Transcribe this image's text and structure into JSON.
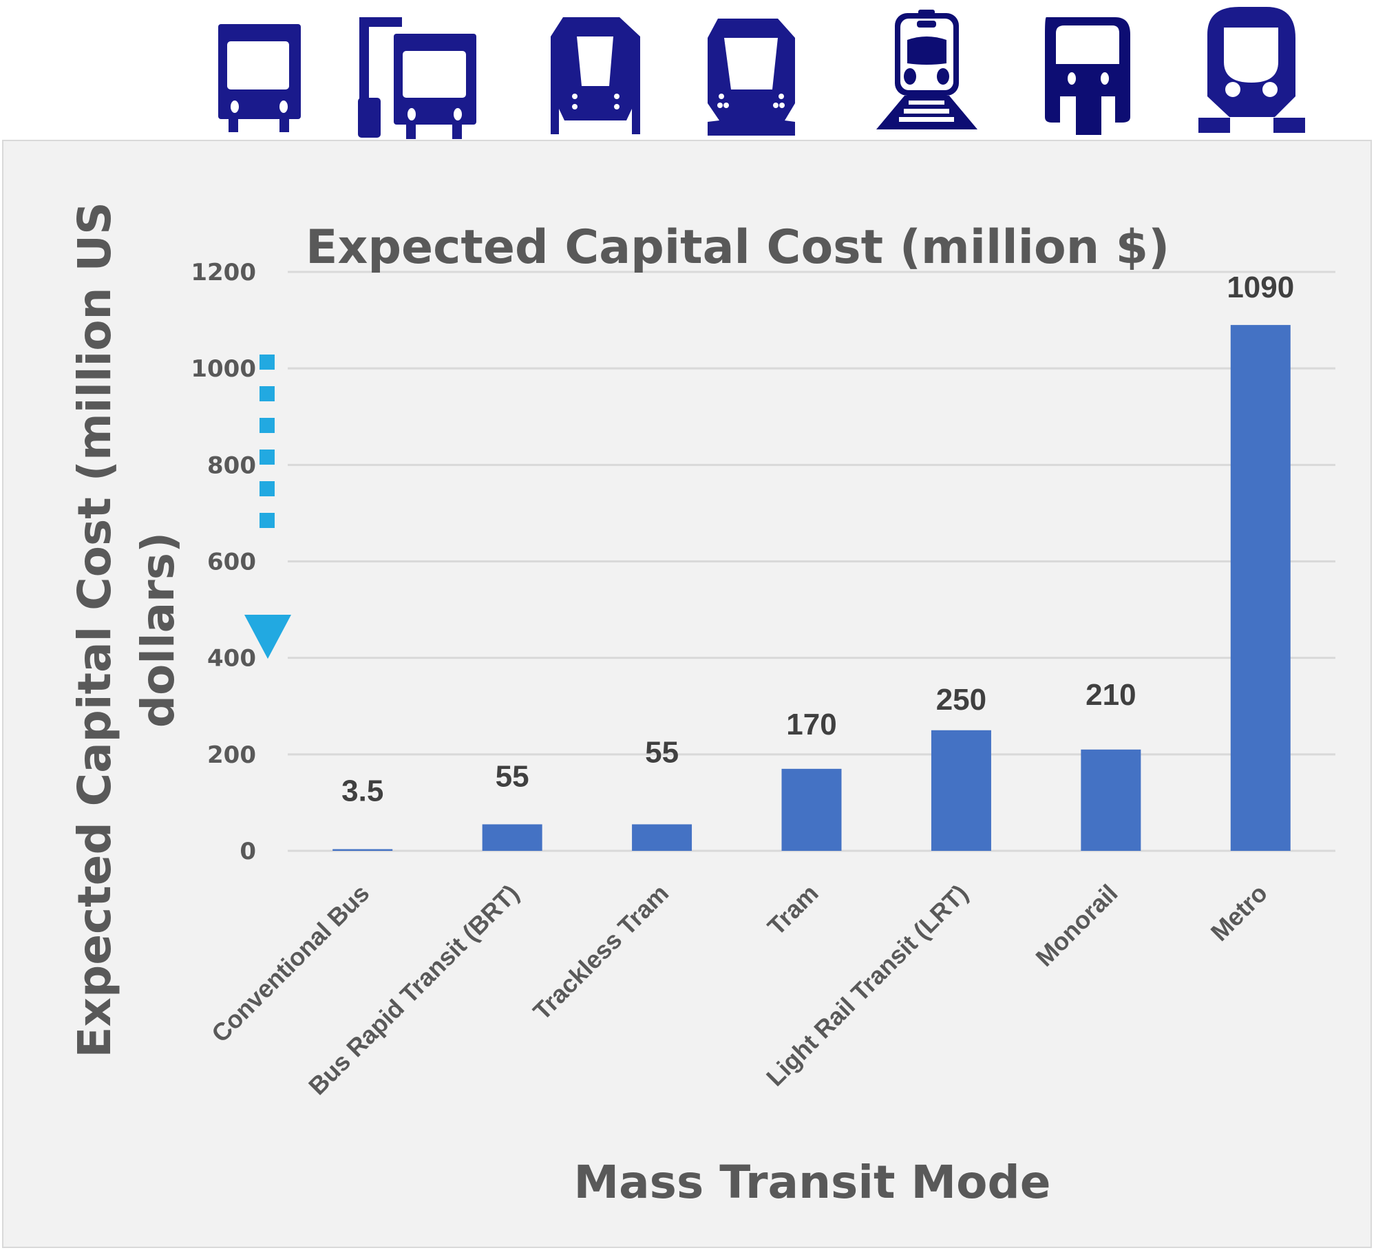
{
  "icons": [
    {
      "name": "conventional-bus-icon",
      "color": "#1a1a8c"
    },
    {
      "name": "brt-bus-icon",
      "color": "#1a1a8c"
    },
    {
      "name": "trackless-tram-icon",
      "color": "#1a1a8c"
    },
    {
      "name": "tram-icon",
      "color": "#1a1a8c"
    },
    {
      "name": "light-rail-icon",
      "color": "#0d0d73"
    },
    {
      "name": "monorail-icon",
      "color": "#0d0d73"
    },
    {
      "name": "metro-icon",
      "color": "#1a1a8c"
    }
  ],
  "colors": {
    "bar": "#4472c4",
    "gridline": "#d9d9d9",
    "text": "#595959",
    "data_label": "#404040",
    "arrow": "#22a9e1",
    "panel_bg": "#f2f2f2"
  },
  "annotation": {
    "type": "dashed-down-arrow",
    "meaning": "lower cost direction"
  },
  "chart_data": {
    "type": "bar",
    "title": "Expected Capital Cost (million $)",
    "xlabel": "Mass Transit Mode",
    "ylabel": "Expected Capital Cost (million US dollars)",
    "ylabel_lines": [
      "Expected Capital Cost (million US",
      "dollars)"
    ],
    "categories": [
      "Conventional Bus",
      "Bus Rapid Transit (BRT)",
      "Trackless Tram",
      "Tram",
      "Light Rail Transit (LRT)",
      "Monorail",
      "Metro"
    ],
    "values": [
      3.5,
      55,
      55,
      170,
      250,
      210,
      1090
    ],
    "data_labels": [
      "3.5",
      "55",
      "55",
      "170",
      "250",
      "210",
      "1090"
    ],
    "ylim": [
      0,
      1200
    ],
    "yticks": [
      0,
      200,
      400,
      600,
      800,
      1000,
      1200
    ],
    "ytick_labels": [
      "0",
      "200",
      "400",
      "600",
      "800",
      "1000",
      "1200"
    ],
    "grid": true,
    "legend": "none"
  }
}
